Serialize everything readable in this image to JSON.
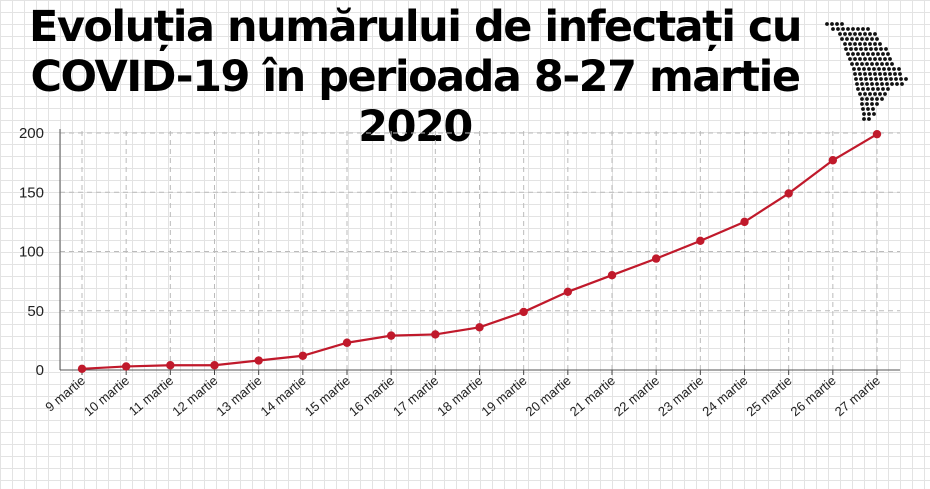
{
  "chart_data": {
    "type": "line",
    "title_line1": "Evoluția numărului de infectați cu",
    "title_line2": "COVID-19 în perioada 8-27 martie 2020",
    "categories": [
      "9 martie",
      "10 martie",
      "11 martie",
      "12 martie",
      "13 martie",
      "14 martie",
      "15 martie",
      "16 martie",
      "17 martie",
      "18 martie",
      "19 martie",
      "20 martie",
      "21 martie",
      "22 martie",
      "23 martie",
      "24 martie",
      "25 martie",
      "26 martie",
      "27 martie"
    ],
    "series": [
      {
        "values": [
          1,
          3,
          4,
          4,
          8,
          12,
          23,
          29,
          30,
          36,
          49,
          66,
          80,
          94,
          109,
          125,
          149,
          177,
          199
        ]
      }
    ],
    "ylim": [
      0,
      200
    ],
    "yticks": [
      0,
      50,
      100,
      150,
      200
    ],
    "grid": true,
    "colors": {
      "line": "#c0192b",
      "marker": "#c0192b",
      "grid": "#bbbbbb"
    }
  }
}
